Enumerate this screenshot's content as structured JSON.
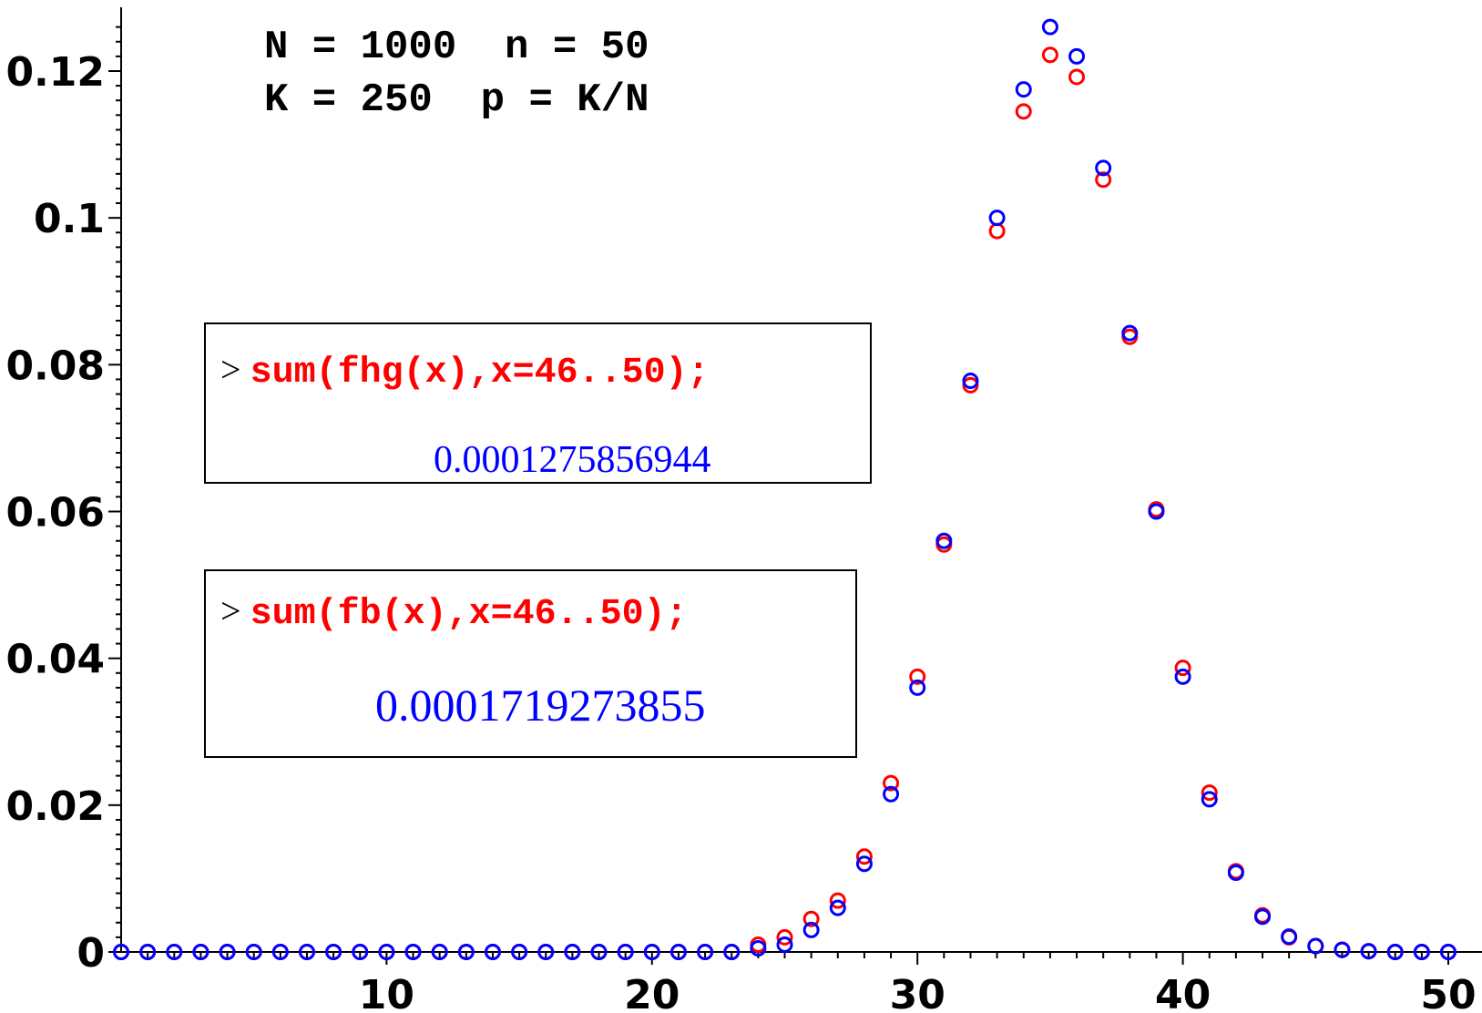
{
  "annotations": {
    "line1": "N = 1000  n = 50",
    "line2": "K = 250  p = K/N"
  },
  "commands": [
    {
      "prompt": ">",
      "input": "sum(fhg(x),x=46..50);",
      "output": "0.0001275856944"
    },
    {
      "prompt": ">",
      "input": "sum(fb(x),x=46..50);",
      "output": "0.0001719273855"
    }
  ],
  "chart_data": {
    "type": "scatter",
    "title": "",
    "xlabel": "",
    "ylabel": "",
    "xlim": [
      0,
      50
    ],
    "ylim": [
      0,
      0.126
    ],
    "x_ticks": [
      "10",
      "20",
      "30",
      "40",
      "50"
    ],
    "y_ticks": [
      "0",
      "0.02",
      "0.04",
      "0.06",
      "0.08",
      "0.1",
      "0.12"
    ],
    "grid": false,
    "x": [
      0,
      1,
      2,
      3,
      4,
      5,
      6,
      7,
      8,
      9,
      10,
      11,
      12,
      13,
      14,
      15,
      16,
      17,
      18,
      19,
      20,
      21,
      22,
      23,
      24,
      25,
      26,
      27,
      28,
      29,
      30,
      31,
      32,
      33,
      34,
      35,
      36,
      37,
      38,
      39,
      40,
      41,
      42,
      43,
      44,
      45,
      46,
      47,
      48,
      49,
      50
    ],
    "series": [
      {
        "color": "#ff0000",
        "marker": "circle",
        "values": [
          0,
          0,
          0,
          0,
          0,
          0,
          0,
          0,
          0,
          0,
          0,
          0,
          0,
          0,
          0,
          0,
          0,
          0,
          0,
          0,
          0,
          0,
          0,
          0,
          0.001,
          0.002,
          0.0045,
          0.007,
          0.013,
          0.023,
          0.0375,
          0.0555,
          0.0772,
          0.0982,
          0.1145,
          0.1222,
          0.1192,
          0.1052,
          0.0838,
          0.0603,
          0.0387,
          0.0217,
          0.011,
          0.005,
          0.002,
          0.0008,
          0.0003,
          0.0001,
          0,
          0,
          0
        ]
      },
      {
        "color": "#0000ff",
        "marker": "circle",
        "values": [
          0,
          0,
          0,
          0,
          0,
          0,
          0,
          0,
          0,
          0,
          0,
          0,
          0,
          0,
          0,
          0,
          0,
          0,
          0,
          0,
          0,
          0,
          0,
          0,
          0.0005,
          0.001,
          0.003,
          0.006,
          0.012,
          0.0215,
          0.036,
          0.056,
          0.0778,
          0.1,
          0.1175,
          0.126,
          0.122,
          0.1068,
          0.0843,
          0.06,
          0.0375,
          0.0208,
          0.0108,
          0.0048,
          0.0021,
          0.0008,
          0.0003,
          0.0001,
          0,
          0,
          0
        ]
      }
    ]
  }
}
